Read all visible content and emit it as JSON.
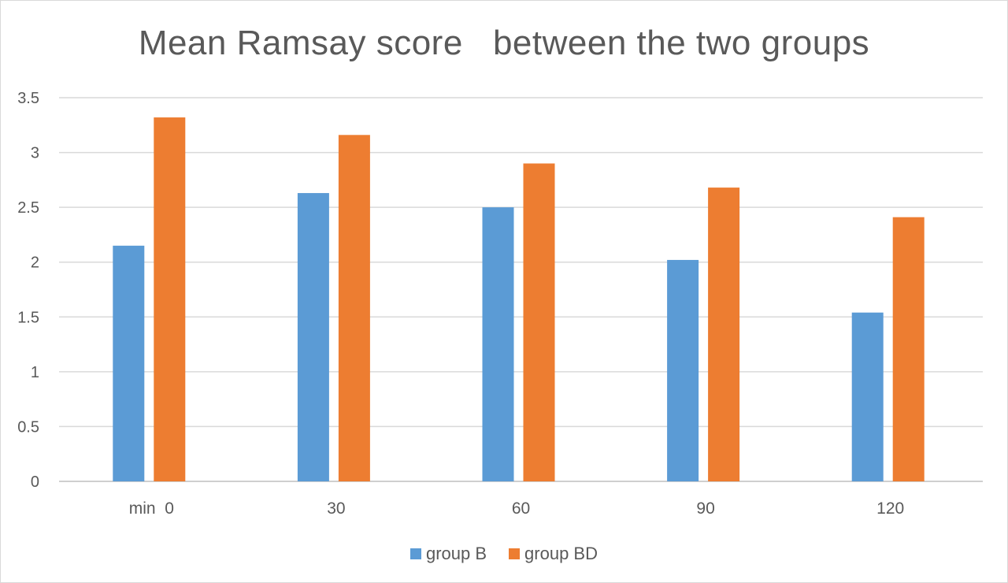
{
  "chart_data": {
    "type": "bar",
    "title": "Mean Ramsay score   between the two groups",
    "categories": [
      "min  0",
      "30",
      "60",
      "90",
      "120"
    ],
    "series": [
      {
        "name": "group B",
        "color": "#5b9bd5",
        "values": [
          2.15,
          2.63,
          2.5,
          2.02,
          1.54
        ]
      },
      {
        "name": "group BD",
        "color": "#ed7d31",
        "values": [
          3.32,
          3.16,
          2.9,
          2.68,
          2.41
        ]
      }
    ],
    "y_ticks": [
      "0",
      "0.5",
      "1",
      "1.5",
      "2",
      "2.5",
      "3",
      "3.5"
    ],
    "ylim": [
      0,
      3.5
    ],
    "grid": true,
    "legend_position": "bottom"
  }
}
